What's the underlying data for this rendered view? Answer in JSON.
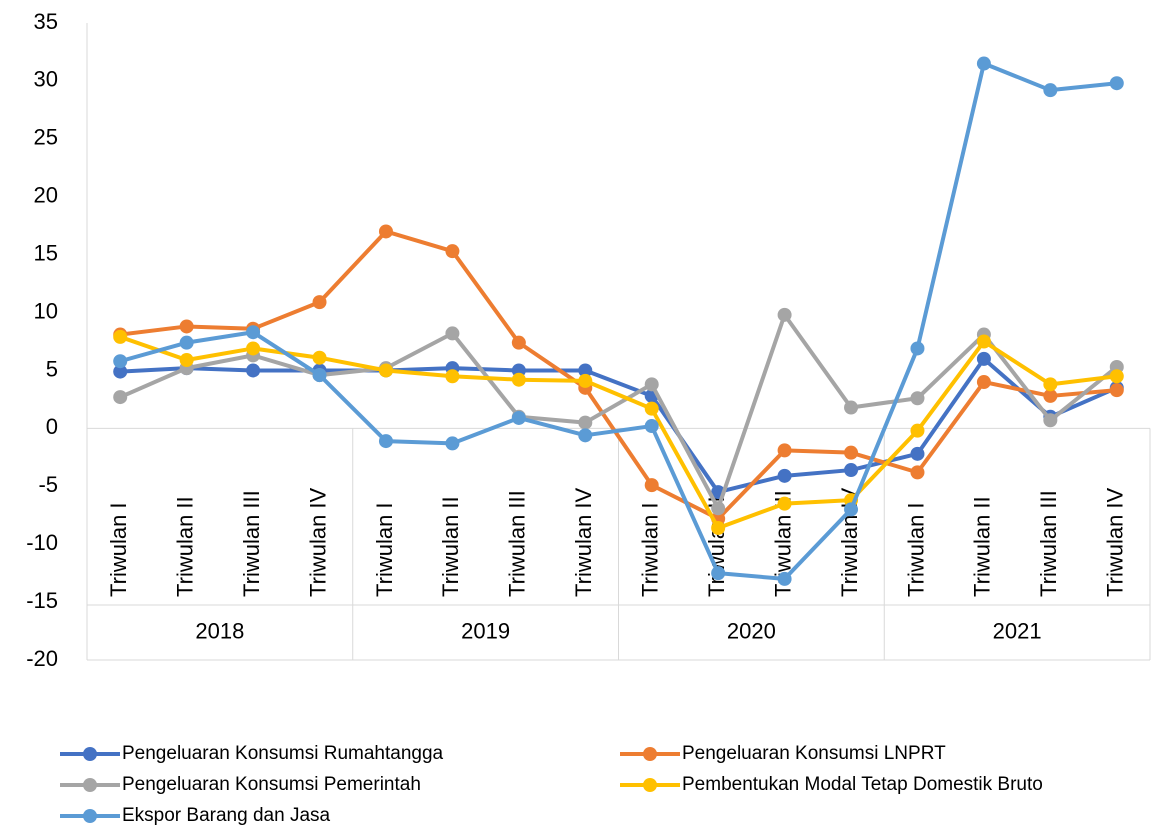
{
  "chart_data": {
    "type": "line",
    "categories": [
      "Triwulan I",
      "Triwulan II",
      "Triwulan III",
      "Triwulan IV",
      "Triwulan I",
      "Triwulan II",
      "Triwulan III",
      "Triwulan IV",
      "Triwulan I",
      "Triwulan II",
      "Triwulan III",
      "Triwulan IV",
      "Triwulan I",
      "Triwulan II",
      "Triwulan III",
      "Triwulan IV"
    ],
    "groups": [
      "2018",
      "2019",
      "2020",
      "2021"
    ],
    "series": [
      {
        "name": "Pengeluaran Konsumsi Rumahtangga",
        "color": "#4472c4",
        "values": [
          4.9,
          5.2,
          5.0,
          5.0,
          5.0,
          5.2,
          5.0,
          5.0,
          2.8,
          -5.5,
          -4.1,
          -3.6,
          -2.2,
          6.0,
          1.0,
          3.5
        ]
      },
      {
        "name": "Pengeluaran Konsumsi LNPRT",
        "color": "#ed7d31",
        "values": [
          8.1,
          8.8,
          8.6,
          10.9,
          17.0,
          15.3,
          7.4,
          3.5,
          -4.9,
          -7.8,
          -1.9,
          -2.1,
          -3.8,
          4.0,
          2.8,
          3.3
        ]
      },
      {
        "name": "Pengeluaran Konsumsi Pemerintah",
        "color": "#a5a5a5",
        "values": [
          2.7,
          5.2,
          6.3,
          4.6,
          5.2,
          8.2,
          1.0,
          0.5,
          3.8,
          -6.9,
          9.8,
          1.8,
          2.6,
          8.1,
          0.7,
          5.3
        ]
      },
      {
        "name": "Pembentukan Modal Tetap Domestik Bruto",
        "color": "#ffc000",
        "values": [
          7.9,
          5.9,
          6.9,
          6.1,
          5.0,
          4.5,
          4.2,
          4.1,
          1.7,
          -8.6,
          -6.5,
          -6.2,
          -0.2,
          7.5,
          3.8,
          4.5
        ]
      },
      {
        "name": "Ekspor Barang dan Jasa",
        "color": "#5b9bd5",
        "values": [
          5.8,
          7.4,
          8.3,
          4.6,
          -1.1,
          -1.3,
          0.9,
          -0.6,
          0.2,
          -12.5,
          -13.0,
          -7.0,
          6.9,
          31.5,
          29.2,
          29.8
        ]
      }
    ],
    "ylim": [
      -20,
      35
    ],
    "yticks": [
      -20,
      -15,
      -10,
      -5,
      0,
      5,
      10,
      15,
      20,
      25,
      30,
      35
    ],
    "grid": false,
    "legend": "bottom"
  }
}
